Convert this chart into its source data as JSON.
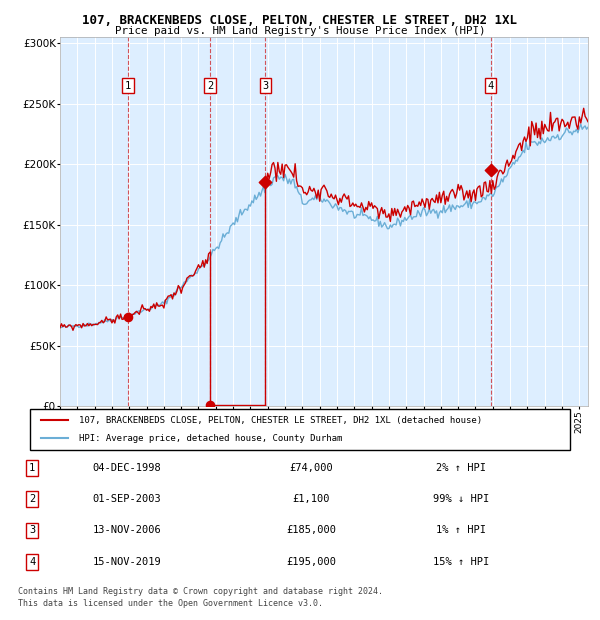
{
  "title": "107, BRACKENBEDS CLOSE, PELTON, CHESTER LE STREET, DH2 1XL",
  "subtitle": "Price paid vs. HM Land Registry's House Price Index (HPI)",
  "legend_line1": "107, BRACKENBEDS CLOSE, PELTON, CHESTER LE STREET, DH2 1XL (detached house)",
  "legend_line2": "HPI: Average price, detached house, County Durham",
  "footer1": "Contains HM Land Registry data © Crown copyright and database right 2024.",
  "footer2": "This data is licensed under the Open Government Licence v3.0.",
  "transactions": [
    {
      "num": 1,
      "date": "04-DEC-1998",
      "price": 74000,
      "price_str": "£74,000",
      "pct": "2%",
      "dir": "↑"
    },
    {
      "num": 2,
      "date": "01-SEP-2003",
      "price": 1100,
      "price_str": "£1,100",
      "pct": "99%",
      "dir": "↓"
    },
    {
      "num": 3,
      "date": "13-NOV-2006",
      "price": 185000,
      "price_str": "£185,000",
      "pct": "1%",
      "dir": "↑"
    },
    {
      "num": 4,
      "date": "15-NOV-2019",
      "price": 195000,
      "price_str": "£195,000",
      "pct": "15%",
      "dir": "↑"
    }
  ],
  "transaction_dates_decimal": [
    1998.92,
    2003.67,
    2006.87,
    2019.87
  ],
  "transaction_prices": [
    74000,
    1100,
    185000,
    195000
  ],
  "hpi_color": "#6baed6",
  "price_color": "#cc0000",
  "dashed_color": "#cc0000",
  "plot_bg": "#ddeeff",
  "hpi_anchors_x": [
    1995.0,
    1997.0,
    1999.0,
    2001.0,
    2003.5,
    2004.5,
    2005.5,
    2006.5,
    2007.5,
    2008.5,
    2009.0,
    2010.0,
    2011.0,
    2012.0,
    2013.0,
    2014.0,
    2015.0,
    2016.0,
    2017.0,
    2018.0,
    2019.0,
    2020.0,
    2021.0,
    2022.0,
    2023.0,
    2024.0,
    2025.4
  ],
  "hpi_anchors_y": [
    65000,
    68000,
    75000,
    85000,
    120000,
    140000,
    160000,
    175000,
    190000,
    185000,
    168000,
    172000,
    165000,
    158000,
    155000,
    148000,
    155000,
    160000,
    162000,
    165000,
    168000,
    175000,
    195000,
    215000,
    220000,
    225000,
    230000
  ],
  "ylim": [
    0,
    300000
  ],
  "xlim_start": 1995.0,
  "xlim_end": 2025.5,
  "yticks": [
    0,
    50000,
    100000,
    150000,
    200000,
    250000,
    300000
  ],
  "xtick_start": 1995,
  "xtick_end": 2026
}
